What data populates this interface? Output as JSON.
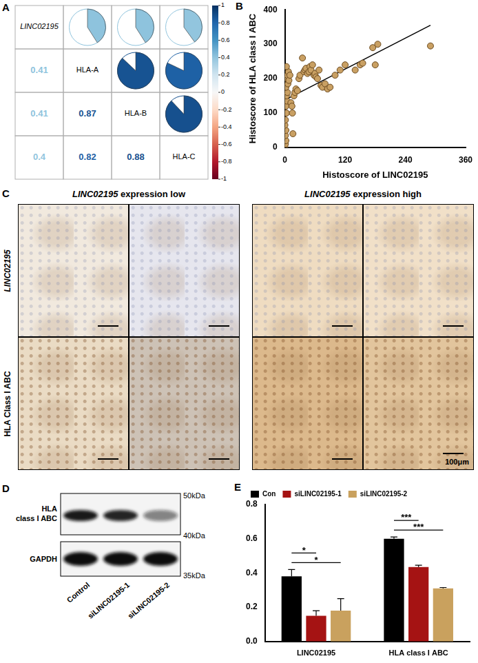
{
  "chart_data": [
    {
      "panel": "A",
      "type": "correlation_matrix",
      "categories": [
        "LINC02195",
        "HLA-A",
        "HLA-B",
        "HLA-C"
      ],
      "cells": [
        [
          null,
          0.41,
          0.41,
          0.4
        ],
        [
          0.41,
          null,
          0.87,
          0.82
        ],
        [
          0.41,
          0.87,
          null,
          0.88
        ],
        [
          0.4,
          0.82,
          0.88,
          null
        ]
      ],
      "colorbar": {
        "range": [
          -1,
          1
        ],
        "ticks": [
          -1,
          -0.8,
          -0.6,
          -0.4,
          -0.2,
          0,
          0.2,
          0.4,
          0.6,
          0.8,
          1
        ]
      }
    },
    {
      "panel": "B",
      "type": "scatter",
      "x_label": "Histoscore of LINC02195",
      "y_label": "Histoscore of HLA class I ABC",
      "x": [
        0,
        1,
        2,
        1,
        2,
        0,
        1,
        3,
        2,
        4,
        3,
        5,
        2,
        6,
        4,
        5,
        7,
        3,
        8,
        10,
        12,
        14,
        15,
        16,
        18,
        20,
        22,
        25,
        28,
        30,
        35,
        38,
        40,
        42,
        45,
        48,
        50,
        52,
        55,
        58,
        60,
        62,
        65,
        68,
        72,
        75,
        80,
        85,
        90,
        100,
        110,
        120,
        140,
        150,
        155,
        175,
        180,
        185,
        290
      ],
      "values": [
        0,
        10,
        20,
        35,
        50,
        65,
        80,
        100,
        120,
        135,
        150,
        160,
        175,
        185,
        200,
        210,
        220,
        235,
        195,
        210,
        130,
        120,
        100,
        40,
        150,
        160,
        170,
        165,
        200,
        210,
        260,
        220,
        225,
        230,
        215,
        220,
        235,
        225,
        240,
        210,
        215,
        205,
        200,
        225,
        180,
        175,
        185,
        170,
        175,
        210,
        225,
        240,
        225,
        240,
        245,
        290,
        240,
        300,
        295
      ],
      "color": "#c9a063",
      "fit_line": {
        "x": [
          0,
          290
        ],
        "y": [
          138,
          355
        ]
      },
      "xlim": [
        0,
        360
      ],
      "xticks": [
        0,
        120,
        240,
        360
      ],
      "ylim": [
        0,
        400
      ],
      "yticks": [
        0,
        100,
        200,
        300,
        400
      ],
      "grid": false
    },
    {
      "panel": "E",
      "type": "bar",
      "categories": [
        "LINC02195",
        "HLA class I ABC"
      ],
      "series": [
        {
          "name": "Con",
          "color": "#000000",
          "values": [
            0.38,
            0.6
          ],
          "errors": [
            0.04,
            0.01
          ]
        },
        {
          "name": "siLINC02195-1",
          "color": "#a51313",
          "values": [
            0.15,
            0.435
          ],
          "errors": [
            0.03,
            0.01
          ]
        },
        {
          "name": "siLINC02195-2",
          "color": "#c9a15e",
          "values": [
            0.18,
            0.31
          ],
          "errors": [
            0.07,
            0.005
          ]
        }
      ],
      "significance": [
        {
          "category": "LINC02195",
          "from": "Con",
          "to": "siLINC02195-1",
          "label": "*"
        },
        {
          "category": "LINC02195",
          "from": "Con",
          "to": "siLINC02195-2",
          "label": "*"
        },
        {
          "category": "HLA class I ABC",
          "from": "Con",
          "to": "siLINC02195-1",
          "label": "***"
        },
        {
          "category": "HLA class I ABC",
          "from": "Con",
          "to": "siLINC02195-2",
          "label": "***"
        }
      ],
      "ylim": [
        0,
        0.8
      ],
      "yticks": [
        {
          "value": 0,
          "label": "0.0"
        },
        0.2,
        0.4,
        0.6,
        0.8
      ],
      "legend": "upper left",
      "grid": false
    }
  ],
  "images": {
    "panel": "C",
    "columns": [
      "LINC02195 expression low",
      "LINC02195 expression high"
    ],
    "rows": [
      "LINC02195",
      "HLA Class I ABC"
    ],
    "scale_bar": "100μm"
  },
  "western_blot": {
    "panel": "D",
    "lanes": [
      "Control",
      "siLINC02195-1",
      "siLINC02195-2"
    ],
    "rows": [
      {
        "label": "HLA class I ABC",
        "intensity": [
          0.95,
          0.9,
          0.5
        ]
      },
      {
        "label": "GAPDH",
        "intensity": [
          1,
          1,
          1
        ]
      }
    ],
    "markers": [
      "50kDa",
      "40kDa",
      "35kDa"
    ]
  }
}
